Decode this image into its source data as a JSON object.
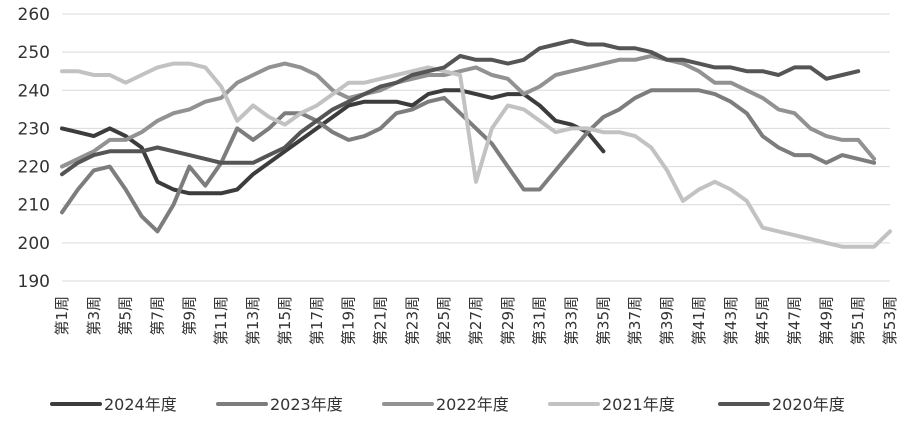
{
  "chart_data": {
    "type": "line",
    "title": "",
    "xlabel": "",
    "ylabel": "",
    "ylim": [
      190,
      260
    ],
    "yticks": [
      190,
      200,
      210,
      220,
      230,
      240,
      250,
      260
    ],
    "grid": "horizontal",
    "legend_position": "bottom",
    "x_tick_labels": [
      "第1周",
      "第3周",
      "第5周",
      "第7周",
      "第9周",
      "第11周",
      "第13周",
      "第15周",
      "第17周",
      "第19周",
      "第21周",
      "第23周",
      "第25周",
      "第27周",
      "第29周",
      "第31周",
      "第33周",
      "第35周",
      "第37周",
      "第39周",
      "第41周",
      "第43周",
      "第45周",
      "第47周",
      "第49周",
      "第51周",
      "第53周"
    ],
    "x": [
      1,
      2,
      3,
      4,
      5,
      6,
      7,
      8,
      9,
      10,
      11,
      12,
      13,
      14,
      15,
      16,
      17,
      18,
      19,
      20,
      21,
      22,
      23,
      24,
      25,
      26,
      27,
      28,
      29,
      30,
      31,
      32,
      33,
      34,
      35,
      36,
      37,
      38,
      39,
      40,
      41,
      42,
      43,
      44,
      45,
      46,
      47,
      48,
      49,
      50,
      51,
      52,
      53
    ],
    "series": [
      {
        "name": "2024年度",
        "color": "#3c3c3c",
        "values": [
          230,
          229,
          228,
          230,
          228,
          225,
          216,
          214,
          213,
          213,
          213,
          214,
          218,
          221,
          224,
          227,
          230,
          233,
          236,
          237,
          237,
          237,
          236,
          239,
          240,
          240,
          239,
          238,
          239,
          239,
          236,
          232,
          231,
          229,
          224,
          null,
          null,
          null,
          null,
          null,
          null,
          null,
          null,
          null,
          null,
          null,
          null,
          null,
          null,
          null,
          null,
          null,
          null
        ]
      },
      {
        "name": "2023年度",
        "color": "#7d7d7d",
        "values": [
          208,
          214,
          219,
          220,
          214,
          207,
          203,
          210,
          220,
          215,
          221,
          230,
          227,
          230,
          234,
          234,
          232,
          229,
          227,
          228,
          230,
          234,
          235,
          237,
          238,
          234,
          230,
          226,
          220,
          214,
          214,
          219,
          224,
          229,
          233,
          235,
          238,
          240,
          240,
          240,
          240,
          239,
          237,
          234,
          228,
          225,
          223,
          223,
          221,
          223,
          222,
          221,
          null
        ]
      },
      {
        "name": "2022年度",
        "color": "#929292",
        "values": [
          220,
          222,
          224,
          227,
          227,
          229,
          232,
          234,
          235,
          237,
          238,
          242,
          244,
          246,
          247,
          246,
          244,
          240,
          238,
          239,
          240,
          242,
          243,
          244,
          244,
          245,
          246,
          244,
          243,
          239,
          241,
          244,
          245,
          246,
          247,
          248,
          248,
          249,
          248,
          247,
          245,
          242,
          242,
          240,
          238,
          235,
          234,
          230,
          228,
          227,
          227,
          222,
          null
        ]
      },
      {
        "name": "2021年度",
        "color": "#c2c2c2",
        "values": [
          245,
          245,
          244,
          244,
          242,
          244,
          246,
          247,
          247,
          246,
          241,
          232,
          236,
          233,
          231,
          234,
          236,
          239,
          242,
          242,
          243,
          244,
          245,
          246,
          245,
          244,
          216,
          230,
          236,
          235,
          232,
          229,
          230,
          230,
          229,
          229,
          228,
          225,
          219,
          211,
          214,
          216,
          214,
          211,
          204,
          203,
          202,
          201,
          200,
          199,
          199,
          199,
          203
        ]
      },
      {
        "name": "2020年度",
        "color": "#555555",
        "values": [
          218,
          221,
          223,
          224,
          224,
          224,
          225,
          224,
          223,
          222,
          221,
          221,
          221,
          223,
          225,
          229,
          232,
          235,
          237,
          239,
          241,
          242,
          244,
          245,
          246,
          249,
          248,
          248,
          247,
          248,
          251,
          252,
          253,
          252,
          252,
          251,
          251,
          250,
          248,
          248,
          247,
          246,
          246,
          245,
          245,
          244,
          246,
          246,
          243,
          244,
          245,
          null,
          null
        ]
      }
    ]
  }
}
